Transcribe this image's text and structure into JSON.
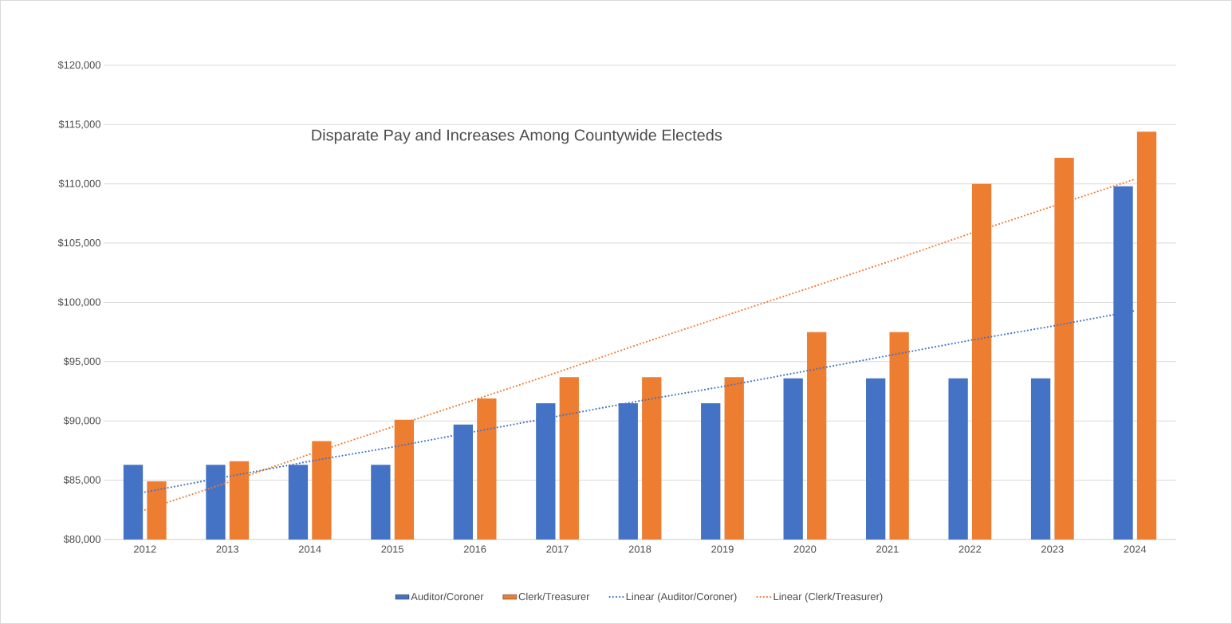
{
  "chart_data": {
    "type": "bar",
    "title": "Disparate Pay and Increases Among Countywide Electeds",
    "categories": [
      "2012",
      "2013",
      "2014",
      "2015",
      "2016",
      "2017",
      "2018",
      "2019",
      "2020",
      "2021",
      "2022",
      "2023",
      "2024"
    ],
    "series": [
      {
        "name": "Auditor/Coroner",
        "color": "#4472c4",
        "values": [
          86300,
          86300,
          86300,
          86300,
          89700,
          91500,
          91500,
          91500,
          93600,
          93600,
          93600,
          93600,
          109800
        ]
      },
      {
        "name": "Clerk/Treasurer",
        "color": "#ed7d31",
        "values": [
          84900,
          86600,
          88300,
          90100,
          91900,
          93700,
          93700,
          93700,
          97500,
          97500,
          110000,
          112200,
          114400
        ]
      },
      {
        "name": "Linear (Auditor/Coroner)",
        "type": "line",
        "line_style": "dotted",
        "color": "#4472c4",
        "values": [
          84000,
          85300,
          86600,
          87800,
          89100,
          90400,
          91700,
          92900,
          94200,
          95500,
          96800,
          98000,
          99300
        ]
      },
      {
        "name": "Linear (Clerk/Treasurer)",
        "type": "line",
        "line_style": "dotted",
        "color": "#ed7d31",
        "values": [
          82500,
          84800,
          87200,
          89500,
          91800,
          94100,
          96500,
          98800,
          101100,
          103400,
          105800,
          108100,
          110400
        ]
      }
    ],
    "ylim": [
      80000,
      120000
    ],
    "yticks": [
      {
        "value": 80000,
        "label": "$80,000"
      },
      {
        "value": 85000,
        "label": "$85,000"
      },
      {
        "value": 90000,
        "label": "$90,000"
      },
      {
        "value": 95000,
        "label": "$95,000"
      },
      {
        "value": 100000,
        "label": "$100,000"
      },
      {
        "value": 105000,
        "label": "$105,000"
      },
      {
        "value": 110000,
        "label": "$110,000"
      },
      {
        "value": 115000,
        "label": "$115,000"
      },
      {
        "value": 120000,
        "label": "$120,000"
      }
    ],
    "grid": "y",
    "legend": "bottom"
  }
}
